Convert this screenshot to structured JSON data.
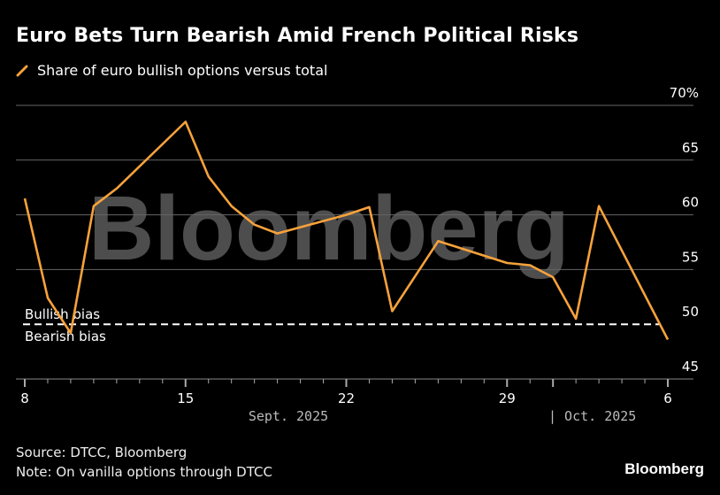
{
  "chart_data": {
    "type": "line",
    "title": "Euro Bets Turn Bearish Amid French Political Risks",
    "series": [
      {
        "name": "Share of euro bullish options versus total",
        "color": "#f7a23b",
        "points": [
          {
            "date": "2025-09-08",
            "value": 61.5
          },
          {
            "date": "2025-09-09",
            "value": 52.4
          },
          {
            "date": "2025-09-10",
            "value": 49.2
          },
          {
            "date": "2025-09-11",
            "value": 60.8
          },
          {
            "date": "2025-09-12",
            "value": 62.4
          },
          {
            "date": "2025-09-15",
            "value": 68.5
          },
          {
            "date": "2025-09-16",
            "value": 63.5
          },
          {
            "date": "2025-09-17",
            "value": 60.8
          },
          {
            "date": "2025-09-18",
            "value": 59.1
          },
          {
            "date": "2025-09-19",
            "value": 58.3
          },
          {
            "date": "2025-09-22",
            "value": 60.0
          },
          {
            "date": "2025-09-23",
            "value": 60.7
          },
          {
            "date": "2025-09-24",
            "value": 51.2
          },
          {
            "date": "2025-09-25",
            "value": 54.4
          },
          {
            "date": "2025-09-26",
            "value": 57.6
          },
          {
            "date": "2025-09-29",
            "value": 55.6
          },
          {
            "date": "2025-09-30",
            "value": 55.4
          },
          {
            "date": "2025-10-01",
            "value": 54.3
          },
          {
            "date": "2025-10-02",
            "value": 50.5
          },
          {
            "date": "2025-10-03",
            "value": 60.8
          },
          {
            "date": "2025-10-06",
            "value": 48.6
          }
        ]
      }
    ],
    "ylim": [
      45,
      70
    ],
    "yticks": [
      "45",
      "50",
      "55",
      "60",
      "65",
      "70%"
    ],
    "ytick_values": [
      45,
      50,
      55,
      60,
      65,
      70
    ],
    "xlim": [
      "2025-09-08",
      "2025-10-06"
    ],
    "xticks": [
      {
        "date": "2025-09-08",
        "label": "8"
      },
      {
        "date": "2025-09-15",
        "label": "15"
      },
      {
        "date": "2025-09-22",
        "label": "22"
      },
      {
        "date": "2025-09-29",
        "label": "29"
      },
      {
        "date": "2025-10-06",
        "label": "6"
      }
    ],
    "month_labels": [
      "Sept. 2025",
      "| Oct. 2025"
    ],
    "reference_line": {
      "value": 50,
      "label_above": "Bullish bias",
      "label_below": "Bearish bias",
      "style": "dashed"
    },
    "grid": true,
    "y_axis_side": "right",
    "legend_placement": "top-left"
  },
  "footer": {
    "source": "Source: DTCC, Bloomberg",
    "note": "Note: On vanilla options through DTCC",
    "brand": "Bloomberg"
  },
  "watermark": "Bloomberg"
}
